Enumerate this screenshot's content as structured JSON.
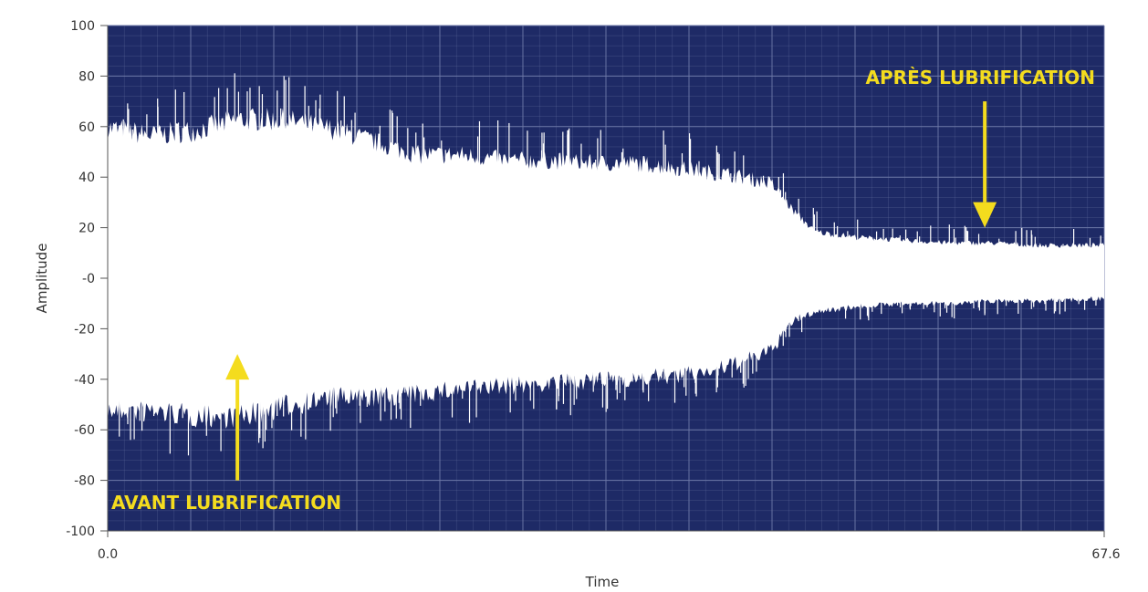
{
  "chart_data": {
    "type": "area",
    "xlabel": "Time",
    "ylabel": "Amplitude",
    "xlim": [
      0.0,
      67.6
    ],
    "ylim": [
      -100,
      100
    ],
    "x_tick_labels": [
      "0.0",
      "67.6"
    ],
    "y_ticks": [
      100,
      80,
      60,
      40,
      20,
      0,
      -20,
      -40,
      -60,
      -80,
      -100
    ],
    "y_tick_labels": [
      "100",
      "80",
      "60",
      "40",
      "20",
      "-0",
      "-20",
      "-40",
      "-60",
      "-80",
      "-100"
    ],
    "grid": true,
    "colors": {
      "plot_background": "#1e2a66",
      "signal": "#ffffff",
      "annotation": "#f4dc1e",
      "grid": "#6f7aa8"
    },
    "series": [
      {
        "x": [
          0,
          3,
          6,
          9,
          12,
          15,
          18,
          21,
          24,
          27,
          30,
          33,
          36,
          39,
          42,
          45,
          46.5,
          48,
          51,
          54,
          57,
          60,
          63,
          67.6
        ],
        "upper": [
          55,
          52,
          54,
          58,
          58,
          55,
          50,
          45,
          45,
          43,
          43,
          42,
          42,
          40,
          38,
          35,
          25,
          17,
          15,
          14,
          13,
          13,
          12,
          12
        ],
        "lower": [
          -48,
          -48,
          -50,
          -50,
          -46,
          -43,
          -43,
          -42,
          -40,
          -39,
          -38,
          -37,
          -36,
          -35,
          -32,
          -26,
          -15,
          -12,
          -10,
          -9,
          -9,
          -8,
          -8,
          -7
        ]
      }
    ],
    "annotations": [
      {
        "text": "AVANT LUBRIFICATION",
        "x": 8.8,
        "arrow_from_y": -80,
        "arrow_to_y": -30
      },
      {
        "text": "APRÈS LUBRIFICATION",
        "x": 59.5,
        "arrow_from_y": 70,
        "arrow_to_y": 20
      }
    ]
  }
}
